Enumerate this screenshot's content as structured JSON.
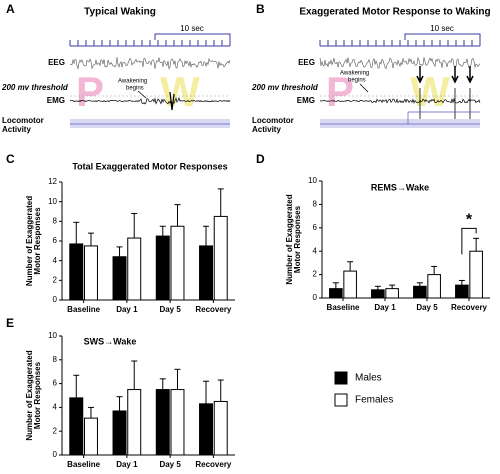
{
  "traces": [
    {
      "letter": "A",
      "title": "Typical Waking",
      "scale": "10 sec",
      "eeg": "EEG",
      "threshold": "200 mv threshold",
      "emg": "EMG",
      "awakening": [
        "Awakening",
        "begins"
      ],
      "locomotor": [
        "Locomotor",
        "Activity"
      ],
      "watermark": [
        "P",
        "W"
      ]
    },
    {
      "letter": "B",
      "title": "Exaggerated Motor Response to Waking",
      "scale": "10 sec",
      "eeg": "EEG",
      "threshold": "200 mv threshold",
      "emg": "EMG",
      "awakening": [
        "Awakening",
        "begins"
      ],
      "locomotor": [
        "Locomotor",
        "Activity"
      ],
      "watermark": [
        "P",
        "W"
      ]
    }
  ],
  "chart_data": [
    {
      "type": "bar",
      "letter": "C",
      "title": "Total Exaggerated Motor Responses",
      "ylabel": [
        "Number of Exaggerated",
        "Motor Responses"
      ],
      "categories": [
        "Baseline",
        "Day 1",
        "Day 5",
        "Recovery"
      ],
      "series": [
        {
          "color": "#000000",
          "values": [
            5.7,
            4.4,
            6.5,
            5.5
          ],
          "errors": [
            2.2,
            1.0,
            1.0,
            2.0
          ]
        },
        {
          "color": "#ffffff",
          "values": [
            5.5,
            6.3,
            7.5,
            8.5
          ],
          "errors": [
            1.3,
            2.5,
            2.2,
            2.8
          ]
        }
      ],
      "ylim": [
        0,
        12
      ],
      "yticks": [
        0,
        2,
        4,
        6,
        8,
        10,
        12
      ]
    },
    {
      "type": "bar",
      "letter": "D",
      "title": "REMS→Wake",
      "ylabel": [
        "Number of Exaggerated",
        "Motor Responses"
      ],
      "categories": [
        "Baseline",
        "Day 1",
        "Day 5",
        "Recovery"
      ],
      "series": [
        {
          "color": "#000000",
          "values": [
            0.8,
            0.7,
            1.0,
            1.1
          ],
          "errors": [
            0.5,
            0.3,
            0.3,
            0.4
          ]
        },
        {
          "color": "#ffffff",
          "values": [
            2.3,
            0.8,
            2.0,
            4.0
          ],
          "errors": [
            0.8,
            0.3,
            0.7,
            1.1
          ]
        }
      ],
      "annotation": {
        "text": "*",
        "category": "Recovery"
      },
      "ylim": [
        0,
        10
      ],
      "yticks": [
        0,
        2,
        4,
        6,
        8,
        10
      ]
    },
    {
      "type": "bar",
      "letter": "E",
      "title": "SWS→Wake",
      "ylabel": [
        "Number of Exaggerated",
        "Motor Responses"
      ],
      "categories": [
        "Baseline",
        "Day 1",
        "Day 5",
        "Recovery"
      ],
      "series": [
        {
          "name": "Males",
          "color": "#000000",
          "values": [
            4.8,
            3.7,
            5.5,
            4.3
          ],
          "errors": [
            1.9,
            1.2,
            0.9,
            1.9
          ]
        },
        {
          "name": "Females",
          "color": "#ffffff",
          "values": [
            3.1,
            5.5,
            5.5,
            4.5
          ],
          "errors": [
            0.9,
            2.4,
            1.7,
            1.8
          ]
        }
      ],
      "legend": true,
      "ylim": [
        0,
        10
      ],
      "yticks": [
        0,
        2,
        4,
        6,
        8,
        10
      ]
    }
  ]
}
